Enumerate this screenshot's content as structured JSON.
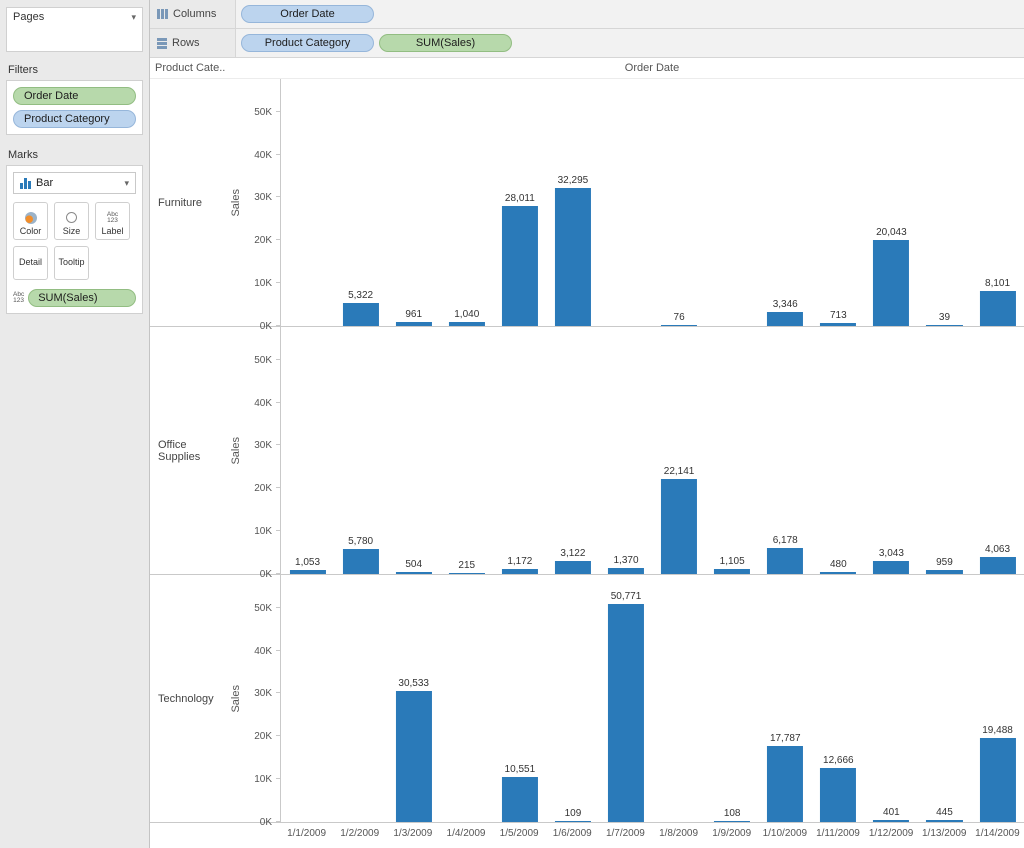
{
  "colors": {
    "bar": "#2a7ab9",
    "pill_blue_bg": "#bcd4ee",
    "pill_blue_border": "#96b6da",
    "pill_green_bg": "#b7d9ab",
    "pill_green_border": "#92bd82",
    "panel_bg": "#eaeaea"
  },
  "sidebar": {
    "pages": {
      "title": "Pages"
    },
    "filters": {
      "title": "Filters",
      "items": [
        {
          "label": "Order Date",
          "type": "green"
        },
        {
          "label": "Product Category",
          "type": "blue"
        }
      ]
    },
    "marks": {
      "title": "Marks",
      "mark_type": "Bar",
      "buttons": [
        {
          "label": "Color"
        },
        {
          "label": "Size"
        },
        {
          "label": "Label"
        },
        {
          "label": "Detail"
        },
        {
          "label": "Tooltip"
        }
      ],
      "pill": {
        "label": "SUM(Sales)",
        "type": "green"
      },
      "label_icon_text": [
        "Abc",
        "123"
      ]
    }
  },
  "shelves": {
    "columns": {
      "label": "Columns",
      "pills": [
        {
          "label": "Order Date",
          "type": "blue"
        }
      ]
    },
    "rows": {
      "label": "Rows",
      "pills": [
        {
          "label": "Product Category",
          "type": "blue"
        },
        {
          "label": "SUM(Sales)",
          "type": "green"
        }
      ]
    }
  },
  "chart_data": {
    "type": "bar",
    "col_header": "Order Date",
    "row_header": "Product Cate..",
    "ylabel": "Sales",
    "ylim": [
      0,
      56000
    ],
    "yticks": [
      "0K",
      "10K",
      "20K",
      "30K",
      "40K",
      "50K"
    ],
    "ytick_values": [
      0,
      10000,
      20000,
      30000,
      40000,
      50000
    ],
    "bar_color": "#2a7ab9",
    "grid": false,
    "legend": "none",
    "categories": [
      "1/1/2009",
      "1/2/2009",
      "1/3/2009",
      "1/4/2009",
      "1/5/2009",
      "1/6/2009",
      "1/7/2009",
      "1/8/2009",
      "1/9/2009",
      "1/10/2009",
      "1/11/2009",
      "1/12/2009",
      "1/13/2009",
      "1/14/2009"
    ],
    "series": [
      {
        "name": "Furniture",
        "values": [
          null,
          5322,
          961,
          1040,
          28011,
          32295,
          null,
          76,
          null,
          3346,
          713,
          20043,
          39,
          8101
        ]
      },
      {
        "name": "Office Supplies",
        "values": [
          1053,
          5780,
          504,
          215,
          1172,
          3122,
          1370,
          22141,
          1105,
          6178,
          480,
          3043,
          959,
          4063
        ]
      },
      {
        "name": "Technology",
        "values": [
          null,
          null,
          30533,
          null,
          10551,
          109,
          50771,
          null,
          108,
          17787,
          12666,
          401,
          445,
          19488
        ]
      }
    ]
  }
}
